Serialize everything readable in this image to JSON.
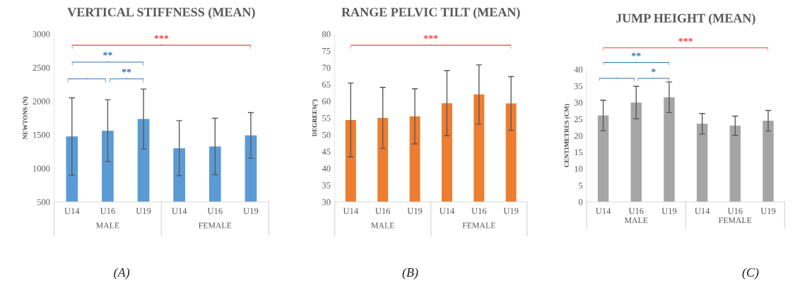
{
  "chart_data": [
    {
      "type": "bar",
      "title": "VERTICAL STIFFNESS (MEAN)",
      "ylabel": "NEWTONS (N)",
      "categories": [
        "U14",
        "U16",
        "U19",
        "U14",
        "U16",
        "U19"
      ],
      "values": [
        1475,
        1560,
        1735,
        1300,
        1325,
        1490
      ],
      "errors": [
        575,
        460,
        445,
        410,
        420,
        340
      ],
      "color": "#5b9bd5",
      "ylim": [
        500,
        3000
      ],
      "yticks": [
        500,
        1000,
        1500,
        2000,
        2500,
        3000
      ],
      "grid": false,
      "annotations": [
        "MALE",
        "FEMALE",
        "***",
        "**",
        "**",
        "(A)"
      ]
    },
    {
      "type": "bar",
      "title": "RANGE PELVIC TILT (MEAN)",
      "ylabel": "DEGREES(°)",
      "categories": [
        "U14",
        "U16",
        "U19",
        "U14",
        "U16",
        "U19"
      ],
      "values": [
        54.4,
        55.0,
        55.5,
        59.4,
        62.0,
        59.3
      ],
      "errors": [
        11.0,
        9.1,
        8.2,
        9.7,
        8.8,
        8.0
      ],
      "color": "#ed7d31",
      "ylim": [
        30,
        80
      ],
      "yticks": [
        30,
        35,
        40,
        45,
        50,
        55,
        60,
        65,
        70,
        75,
        80
      ],
      "grid": false,
      "annotations": [
        "MALE",
        "FEMALE",
        "***",
        "(B)"
      ]
    },
    {
      "type": "bar",
      "title": "JUMP HEIGHT (MEAN)",
      "ylabel": "CENTIMETRES (CM)",
      "categories": [
        "U14",
        "U16",
        "U19",
        "U14",
        "U16",
        "U19"
      ],
      "values": [
        26.1,
        30.0,
        31.6,
        23.6,
        23.0,
        24.5
      ],
      "errors": [
        4.6,
        4.9,
        4.6,
        3.1,
        2.9,
        3.1
      ],
      "color": "#a5a5a5",
      "ylim": [
        0,
        40
      ],
      "yticks": [
        0,
        5,
        10,
        15,
        20,
        25,
        30,
        35,
        40
      ],
      "grid": false,
      "annotations": [
        "MALE",
        "FEMALE",
        "***",
        "**",
        "*",
        "(C)"
      ]
    }
  ]
}
